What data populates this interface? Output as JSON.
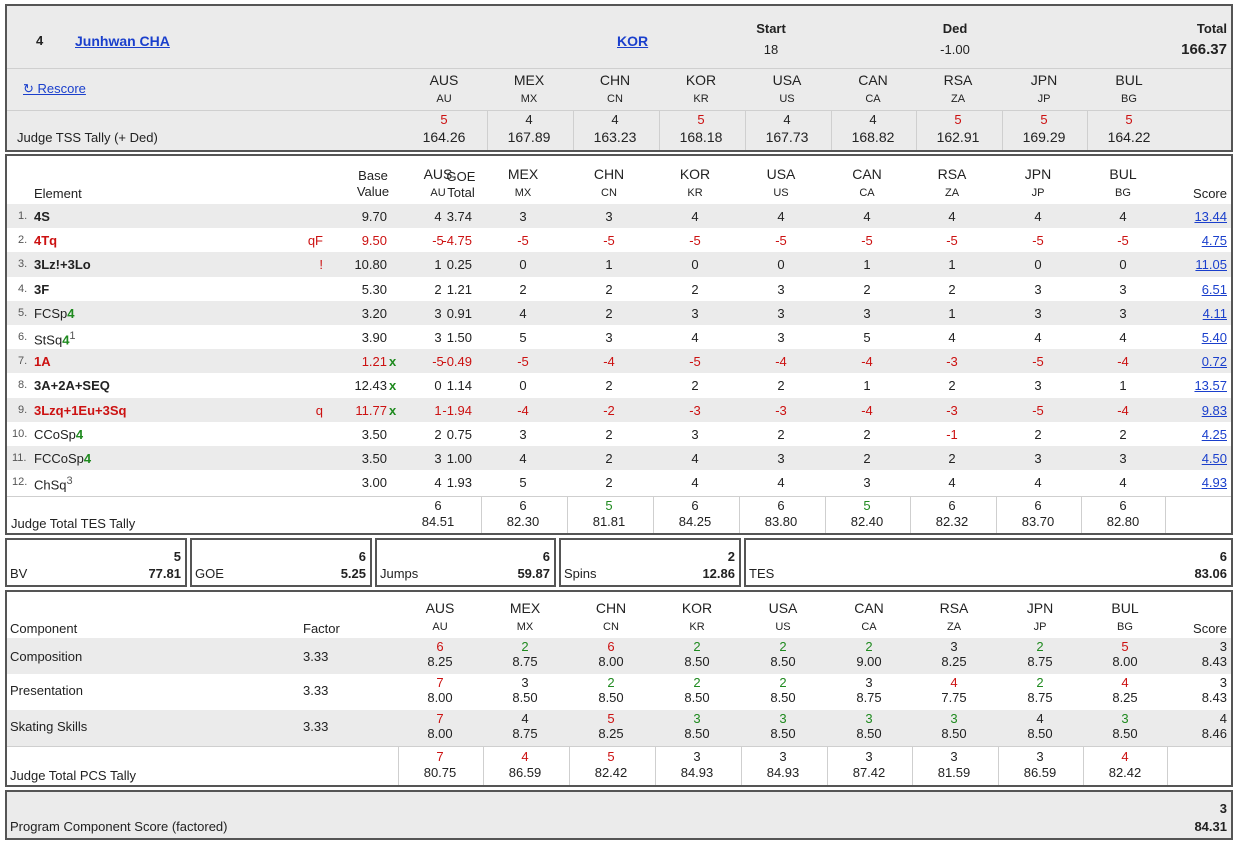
{
  "skater": {
    "rank": "4",
    "name": "Junhwan CHA",
    "nation": "KOR",
    "start_label": "Start",
    "start": "18",
    "ded_label": "Ded",
    "ded": "-1.00",
    "total_label": "Total",
    "total": "166.37"
  },
  "rescore_label": "↻ Rescore",
  "judge_tss_label": "Judge TSS Tally (+ Ded)",
  "judges": [
    {
      "name": "AUS",
      "code": "AU"
    },
    {
      "name": "MEX",
      "code": "MX"
    },
    {
      "name": "CHN",
      "code": "CN"
    },
    {
      "name": "KOR",
      "code": "KR"
    },
    {
      "name": "USA",
      "code": "US"
    },
    {
      "name": "CAN",
      "code": "CA"
    },
    {
      "name": "RSA",
      "code": "ZA"
    },
    {
      "name": "JPN",
      "code": "JP"
    },
    {
      "name": "BUL",
      "code": "BG"
    }
  ],
  "tss_tally": [
    {
      "rank": "5",
      "score": "164.26",
      "color": "red"
    },
    {
      "rank": "4",
      "score": "167.89",
      "color": "plain"
    },
    {
      "rank": "4",
      "score": "163.23",
      "color": "plain"
    },
    {
      "rank": "5",
      "score": "168.18",
      "color": "red"
    },
    {
      "rank": "4",
      "score": "167.73",
      "color": "plain"
    },
    {
      "rank": "4",
      "score": "168.82",
      "color": "plain"
    },
    {
      "rank": "5",
      "score": "162.91",
      "color": "red"
    },
    {
      "rank": "5",
      "score": "169.29",
      "color": "red"
    },
    {
      "rank": "5",
      "score": "164.22",
      "color": "red"
    }
  ],
  "elements_header": {
    "element": "Element",
    "base_value": "Base\nValue",
    "goe_total": "GOE\nTotal",
    "score": "Score"
  },
  "elements": [
    {
      "num": "1.",
      "name": "4S",
      "name_level": "",
      "sup": "",
      "flag": "",
      "bv": "9.70",
      "x": "",
      "goe": "3.74",
      "goe_neg": false,
      "style": "bold",
      "marks": [
        "4",
        "3",
        "3",
        "4",
        "4",
        "4",
        "4",
        "4",
        "4"
      ],
      "score": "13.44",
      "score_red": false
    },
    {
      "num": "2.",
      "name": "4Tq",
      "name_level": "",
      "sup": "",
      "flag": "qF",
      "bv": "9.50",
      "x": "",
      "goe": "-4.75",
      "goe_neg": true,
      "style": "boldred",
      "marks": [
        "-5",
        "-5",
        "-5",
        "-5",
        "-5",
        "-5",
        "-5",
        "-5",
        "-5"
      ],
      "score": "4.75",
      "score_red": true
    },
    {
      "num": "3.",
      "name": "3Lz!+3Lo",
      "name_level": "",
      "sup": "",
      "flag": "!",
      "bv": "10.80",
      "x": "",
      "goe": "0.25",
      "goe_neg": false,
      "style": "bold",
      "marks": [
        "1",
        "0",
        "1",
        "0",
        "0",
        "1",
        "1",
        "0",
        "0"
      ],
      "score": "11.05",
      "score_red": false
    },
    {
      "num": "4.",
      "name": "3F",
      "name_level": "",
      "sup": "",
      "flag": "",
      "bv": "5.30",
      "x": "",
      "goe": "1.21",
      "goe_neg": false,
      "style": "bold",
      "marks": [
        "2",
        "2",
        "2",
        "2",
        "3",
        "2",
        "2",
        "3",
        "3"
      ],
      "score": "6.51",
      "score_red": false
    },
    {
      "num": "5.",
      "name": "FCSp",
      "name_level": "4",
      "sup": "",
      "flag": "",
      "bv": "3.20",
      "x": "",
      "goe": "0.91",
      "goe_neg": false,
      "style": "plain",
      "marks": [
        "3",
        "4",
        "2",
        "3",
        "3",
        "3",
        "1",
        "3",
        "3"
      ],
      "score": "4.11",
      "score_red": false
    },
    {
      "num": "6.",
      "name": "StSq",
      "name_level": "4",
      "sup": "1",
      "flag": "",
      "bv": "3.90",
      "x": "",
      "goe": "1.50",
      "goe_neg": false,
      "style": "plain",
      "marks": [
        "3",
        "5",
        "3",
        "4",
        "3",
        "5",
        "4",
        "4",
        "4"
      ],
      "score": "5.40",
      "score_red": false
    },
    {
      "num": "7.",
      "name": "1A",
      "name_level": "",
      "sup": "",
      "flag": "",
      "bv": "1.21",
      "x": "x",
      "goe": "-0.49",
      "goe_neg": true,
      "style": "boldred",
      "marks": [
        "-5",
        "-5",
        "-4",
        "-5",
        "-4",
        "-4",
        "-3",
        "-5",
        "-4"
      ],
      "score": "0.72",
      "score_red": true
    },
    {
      "num": "8.",
      "name": "3A+2A+SEQ",
      "name_level": "",
      "sup": "",
      "flag": "",
      "bv": "12.43",
      "x": "x",
      "goe": "1.14",
      "goe_neg": false,
      "style": "bold",
      "marks": [
        "0",
        "0",
        "2",
        "2",
        "2",
        "1",
        "2",
        "3",
        "1"
      ],
      "score": "13.57",
      "score_red": false
    },
    {
      "num": "9.",
      "name": "3Lzq+1Eu+3Sq",
      "name_level": "",
      "sup": "",
      "flag": "q",
      "bv": "11.77",
      "x": "x",
      "goe": "-1.94",
      "goe_neg": true,
      "style": "boldred",
      "marks": [
        "1",
        "-4",
        "-2",
        "-3",
        "-3",
        "-4",
        "-3",
        "-5",
        "-4"
      ],
      "score": "9.83",
      "score_red": true
    },
    {
      "num": "10.",
      "name": "CCoSp",
      "name_level": "4",
      "sup": "",
      "flag": "",
      "bv": "3.50",
      "x": "",
      "goe": "0.75",
      "goe_neg": false,
      "style": "plain",
      "marks": [
        "2",
        "3",
        "2",
        "3",
        "2",
        "2",
        "-1",
        "2",
        "2"
      ],
      "score": "4.25",
      "score_red": false
    },
    {
      "num": "11.",
      "name": "FCCoSp",
      "name_level": "4",
      "sup": "",
      "flag": "",
      "bv": "3.50",
      "x": "",
      "goe": "1.00",
      "goe_neg": false,
      "style": "plain",
      "marks": [
        "3",
        "4",
        "2",
        "4",
        "3",
        "2",
        "2",
        "3",
        "3"
      ],
      "score": "4.50",
      "score_red": false
    },
    {
      "num": "12.",
      "name": "ChSq",
      "name_level": "",
      "sup": "3",
      "flag": "",
      "bv": "3.00",
      "x": "",
      "goe": "1.93",
      "goe_neg": false,
      "style": "plain",
      "marks": [
        "4",
        "5",
        "2",
        "4",
        "4",
        "3",
        "4",
        "4",
        "4"
      ],
      "score": "4.93",
      "score_red": false
    }
  ],
  "tes_tally_label": "Judge Total TES Tally",
  "tes_tally": [
    {
      "rank": "6",
      "score": "84.51",
      "color": "plain"
    },
    {
      "rank": "6",
      "score": "82.30",
      "color": "plain"
    },
    {
      "rank": "5",
      "score": "81.81",
      "color": "green"
    },
    {
      "rank": "6",
      "score": "84.25",
      "color": "plain"
    },
    {
      "rank": "6",
      "score": "83.80",
      "color": "plain"
    },
    {
      "rank": "5",
      "score": "82.40",
      "color": "green"
    },
    {
      "rank": "6",
      "score": "82.32",
      "color": "plain"
    },
    {
      "rank": "6",
      "score": "83.70",
      "color": "plain"
    },
    {
      "rank": "6",
      "score": "82.80",
      "color": "plain"
    }
  ],
  "summary": [
    {
      "label": "BV",
      "count": "5",
      "value": "77.81"
    },
    {
      "label": "GOE",
      "count": "6",
      "value": "5.25"
    },
    {
      "label": "Jumps",
      "count": "6",
      "value": "59.87"
    },
    {
      "label": "Spins",
      "count": "2",
      "value": "12.86"
    },
    {
      "label": "TES",
      "count": "6",
      "value": "83.06"
    }
  ],
  "components_header": {
    "component": "Component",
    "factor": "Factor",
    "score": "Score"
  },
  "components": [
    {
      "name": "Composition",
      "factor": "3.33",
      "marks": [
        {
          "rank": "6",
          "val": "8.25",
          "color": "red"
        },
        {
          "rank": "2",
          "val": "8.75",
          "color": "green"
        },
        {
          "rank": "6",
          "val": "8.00",
          "color": "red"
        },
        {
          "rank": "2",
          "val": "8.50",
          "color": "green"
        },
        {
          "rank": "2",
          "val": "8.50",
          "color": "green"
        },
        {
          "rank": "2",
          "val": "9.00",
          "color": "green"
        },
        {
          "rank": "3",
          "val": "8.25",
          "color": "plain"
        },
        {
          "rank": "2",
          "val": "8.75",
          "color": "green"
        },
        {
          "rank": "5",
          "val": "8.00",
          "color": "red"
        }
      ],
      "score_rank": "3",
      "score": "8.43"
    },
    {
      "name": "Presentation",
      "factor": "3.33",
      "marks": [
        {
          "rank": "7",
          "val": "8.00",
          "color": "red"
        },
        {
          "rank": "3",
          "val": "8.50",
          "color": "plain"
        },
        {
          "rank": "2",
          "val": "8.50",
          "color": "green"
        },
        {
          "rank": "2",
          "val": "8.50",
          "color": "green"
        },
        {
          "rank": "2",
          "val": "8.50",
          "color": "green"
        },
        {
          "rank": "3",
          "val": "8.75",
          "color": "plain"
        },
        {
          "rank": "4",
          "val": "7.75",
          "color": "red"
        },
        {
          "rank": "2",
          "val": "8.75",
          "color": "green"
        },
        {
          "rank": "4",
          "val": "8.25",
          "color": "red"
        }
      ],
      "score_rank": "3",
      "score": "8.43"
    },
    {
      "name": "Skating Skills",
      "factor": "3.33",
      "marks": [
        {
          "rank": "7",
          "val": "8.00",
          "color": "red"
        },
        {
          "rank": "4",
          "val": "8.75",
          "color": "plain"
        },
        {
          "rank": "5",
          "val": "8.25",
          "color": "red"
        },
        {
          "rank": "3",
          "val": "8.50",
          "color": "green"
        },
        {
          "rank": "3",
          "val": "8.50",
          "color": "green"
        },
        {
          "rank": "3",
          "val": "8.50",
          "color": "green"
        },
        {
          "rank": "3",
          "val": "8.50",
          "color": "green"
        },
        {
          "rank": "4",
          "val": "8.50",
          "color": "plain"
        },
        {
          "rank": "3",
          "val": "8.50",
          "color": "green"
        }
      ],
      "score_rank": "4",
      "score": "8.46"
    }
  ],
  "pcs_tally_label": "Judge Total PCS Tally",
  "pcs_tally": [
    {
      "rank": "7",
      "score": "80.75",
      "color": "red"
    },
    {
      "rank": "4",
      "score": "86.59",
      "color": "red"
    },
    {
      "rank": "5",
      "score": "82.42",
      "color": "red"
    },
    {
      "rank": "3",
      "score": "84.93",
      "color": "plain"
    },
    {
      "rank": "3",
      "score": "84.93",
      "color": "plain"
    },
    {
      "rank": "3",
      "score": "87.42",
      "color": "plain"
    },
    {
      "rank": "3",
      "score": "81.59",
      "color": "plain"
    },
    {
      "rank": "3",
      "score": "86.59",
      "color": "plain"
    },
    {
      "rank": "4",
      "score": "82.42",
      "color": "red"
    }
  ],
  "pcs": {
    "label": "Program Component Score (factored)",
    "rank": "3",
    "score": "84.31"
  }
}
